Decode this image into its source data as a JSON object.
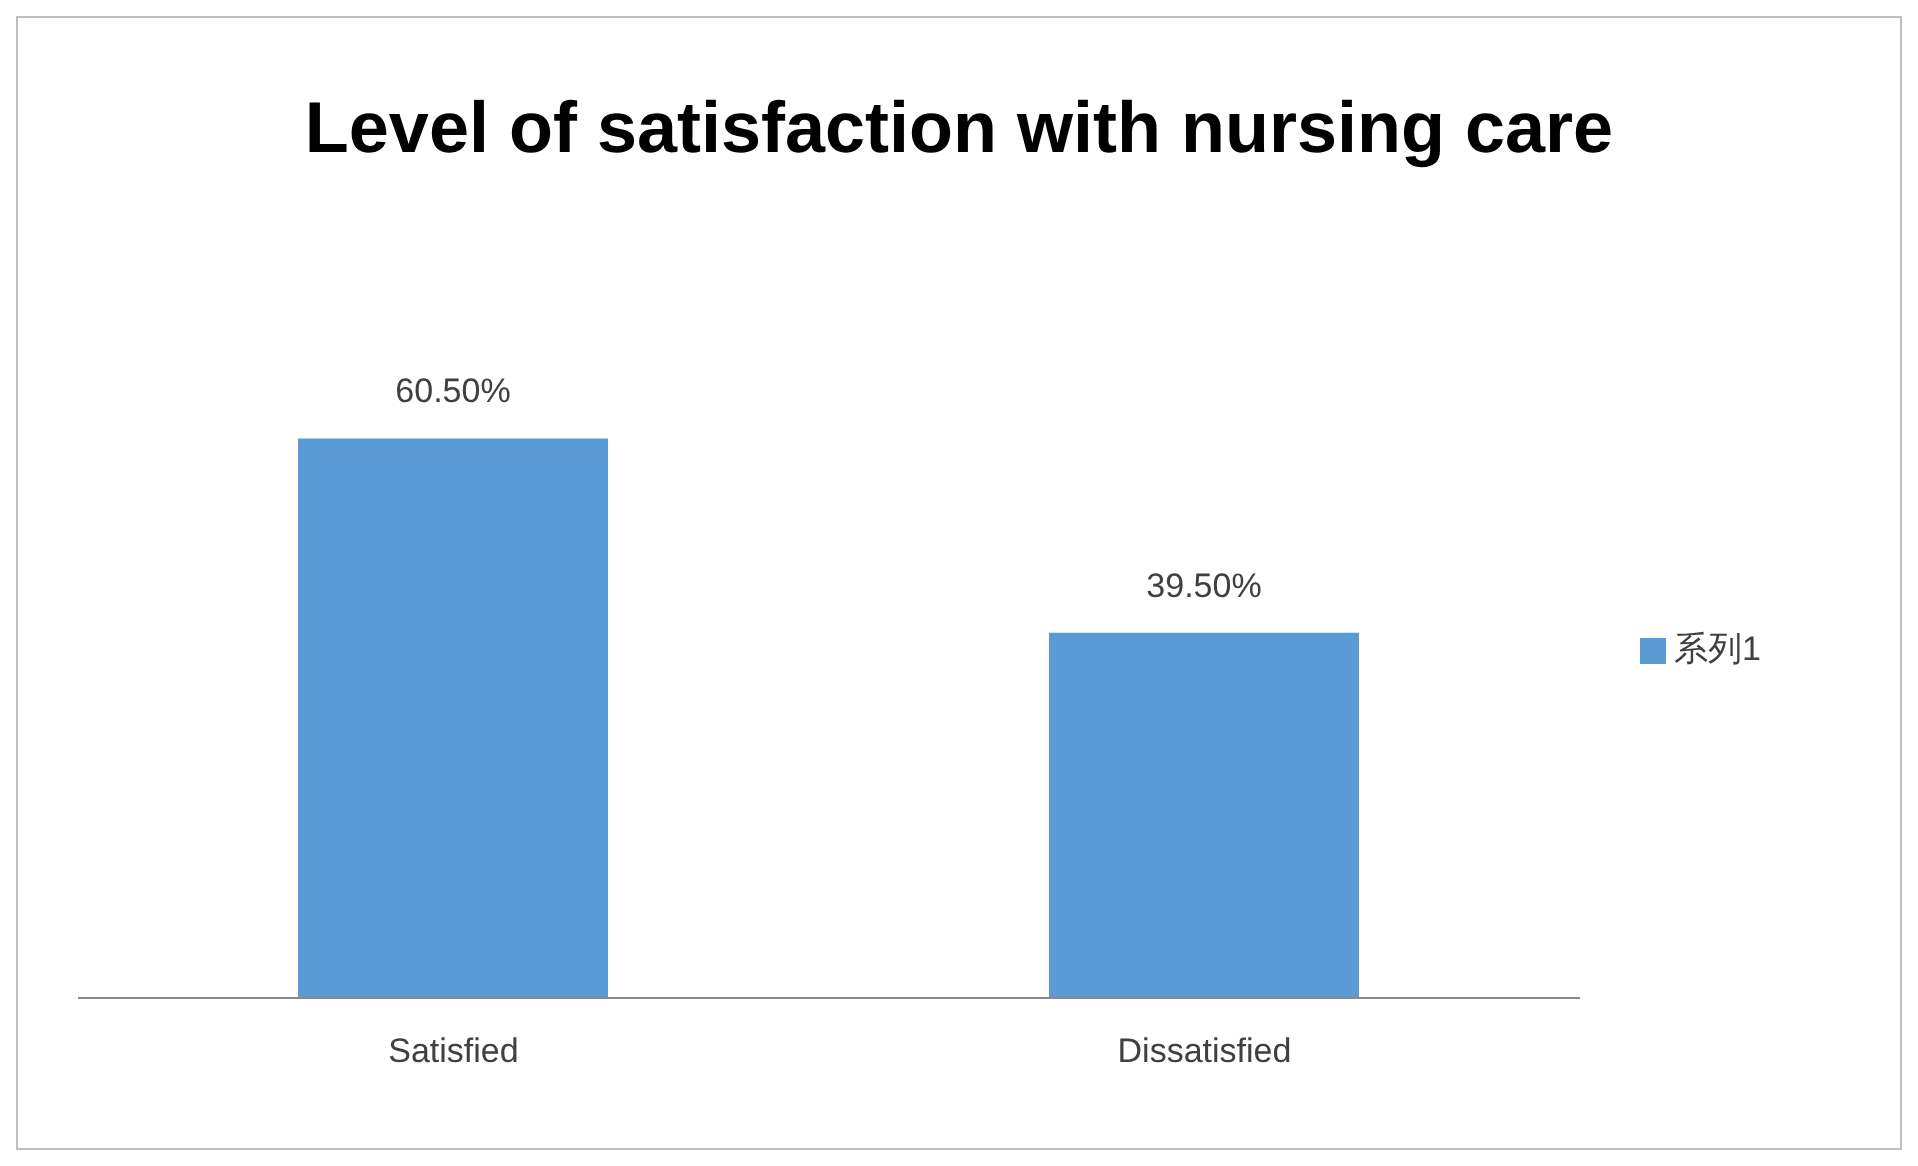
{
  "chart_data": {
    "type": "bar",
    "title": "Level of satisfaction with nursing care",
    "categories": [
      "Satisfied",
      "Dissatisfied"
    ],
    "series": [
      {
        "name": "系列1",
        "color": "#5b9bd5",
        "values": [
          60.5,
          39.5
        ],
        "value_labels": [
          "60.50%",
          "39.50%"
        ]
      }
    ],
    "legend": "right",
    "grid": false
  }
}
